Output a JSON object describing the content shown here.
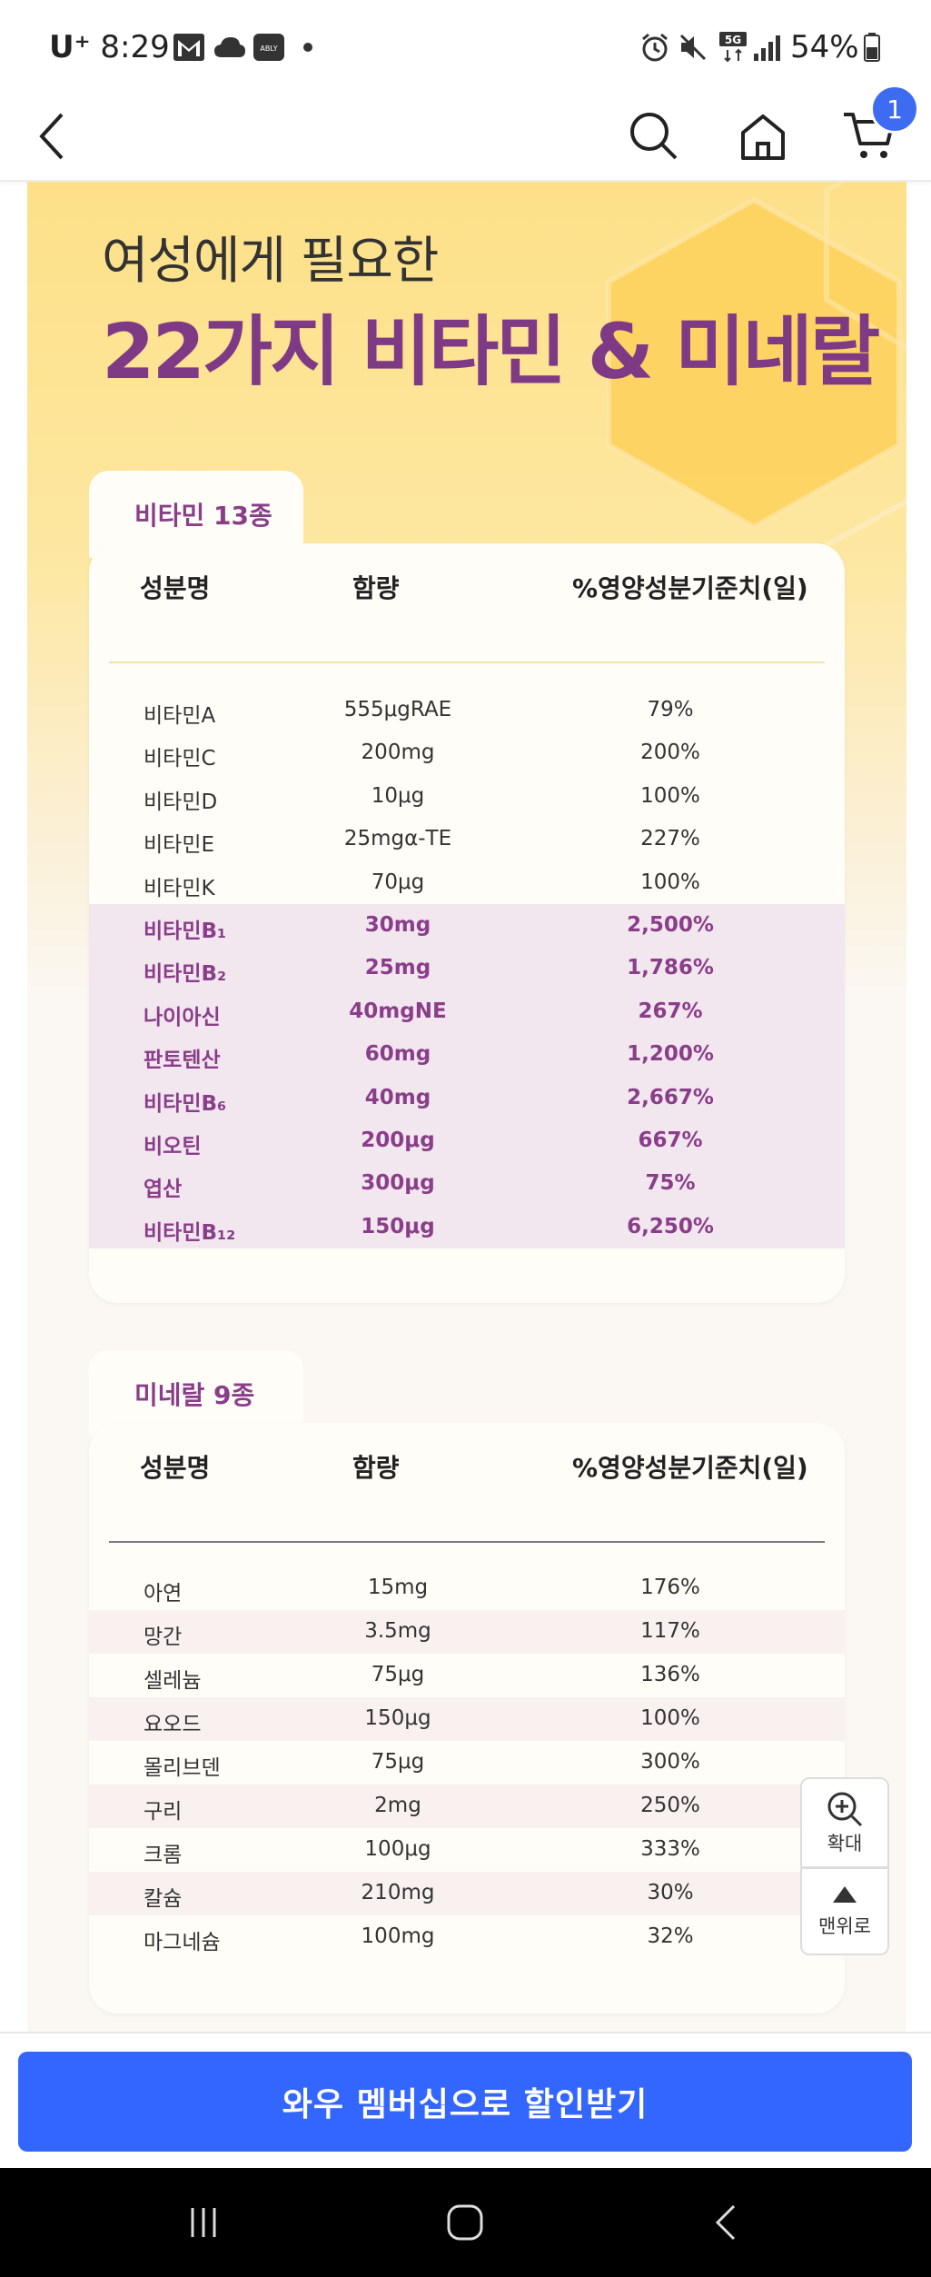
{
  "status_bar": {
    "carrier": "U⁺",
    "time": "8:29",
    "battery": "54%",
    "icons": [
      "gmail-icon",
      "cloud-icon",
      "ably-icon",
      "dot-icon",
      "alarm-icon",
      "mute-icon",
      "5g-icon",
      "signal-icon",
      "battery-icon"
    ],
    "ably_label": "ABLY",
    "network_label": "5G"
  },
  "header": {
    "cart_count": "1",
    "icons": [
      "back-icon",
      "search-icon",
      "home-icon",
      "cart-icon"
    ]
  },
  "hero": {
    "subtitle": "여성에게 필요한",
    "title": "22가지 비타민 & 미네랄",
    "accent_color": "#7f3a86"
  },
  "vitamins": {
    "tab_label": "비타민 13종",
    "columns": [
      "성분명",
      "함량",
      "%영양성분기준치(일)"
    ],
    "rows": [
      {
        "name": "비타민A",
        "amount": "555μgRAE",
        "percent": "79%"
      },
      {
        "name": "비타민C",
        "amount": "200mg",
        "percent": "200%"
      },
      {
        "name": "비타민D",
        "amount": "10μg",
        "percent": "100%"
      },
      {
        "name": "비타민E",
        "amount": "25mgα-TE",
        "percent": "227%"
      },
      {
        "name": "비타민K",
        "amount": "70μg",
        "percent": "100%"
      },
      {
        "name": "비타민B₁",
        "amount": "30mg",
        "percent": "2,500%"
      },
      {
        "name": "비타민B₂",
        "amount": "25mg",
        "percent": "1,786%"
      },
      {
        "name": "나이아신",
        "amount": "40mgNE",
        "percent": "267%"
      },
      {
        "name": "판토텐산",
        "amount": "60mg",
        "percent": "1,200%"
      },
      {
        "name": "비타민B₆",
        "amount": "40mg",
        "percent": "2,667%"
      },
      {
        "name": "비오틴",
        "amount": "200μg",
        "percent": "667%"
      },
      {
        "name": "엽산",
        "amount": "300μg",
        "percent": "75%"
      },
      {
        "name": "비타민B₁₂",
        "amount": "150μg",
        "percent": "6,250%"
      }
    ]
  },
  "minerals": {
    "tab_label": "미네랄 9종",
    "columns": [
      "성분명",
      "함량",
      "%영양성분기준치(일)"
    ],
    "rows": [
      {
        "name": "아연",
        "amount": "15mg",
        "percent": "176%"
      },
      {
        "name": "망간",
        "amount": "3.5mg",
        "percent": "117%"
      },
      {
        "name": "셀레늄",
        "amount": "75μg",
        "percent": "136%"
      },
      {
        "name": "요오드",
        "amount": "150μg",
        "percent": "100%"
      },
      {
        "name": "몰리브덴",
        "amount": "75μg",
        "percent": "300%"
      },
      {
        "name": "구리",
        "amount": "2mg",
        "percent": "250%"
      },
      {
        "name": "크롬",
        "amount": "100μg",
        "percent": "333%"
      },
      {
        "name": "칼슘",
        "amount": "210mg",
        "percent": "30%"
      },
      {
        "name": "마그네슘",
        "amount": "100mg",
        "percent": "32%"
      }
    ]
  },
  "floating": {
    "zoom_label": "확대",
    "top_label": "맨위로"
  },
  "cta": {
    "label": "와우 멤버십으로 할인받기",
    "color": "#3366ff"
  },
  "nav": {
    "icons": [
      "recent-apps-icon",
      "home-nav-icon",
      "back-nav-icon"
    ]
  }
}
